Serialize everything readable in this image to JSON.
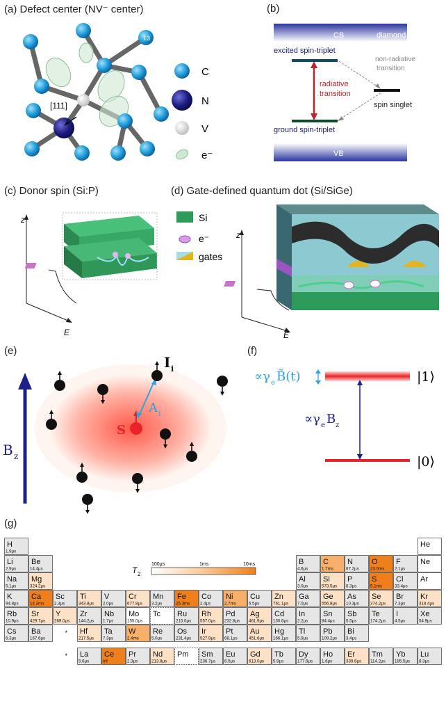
{
  "panels": {
    "a": {
      "label": "(a) Defect center (NV⁻ center)",
      "direction": "[111]",
      "atom_index": "13",
      "legend": [
        {
          "symbol": "C"
        },
        {
          "symbol": "N"
        },
        {
          "symbol": "V"
        },
        {
          "symbol": "e⁻"
        }
      ]
    },
    "b": {
      "label": "(b)",
      "cb": "CB",
      "diamond": "diamond",
      "vb": "VB",
      "excited": "excited spin-triplet",
      "ground": "ground spin-triplet",
      "radiative": "radiative",
      "radiative2": "transition",
      "nonrad": "non-radiative",
      "nonrad2": "transition",
      "singlet": "spin singlet"
    },
    "c": {
      "label": "(c)  Donor spin (Si:P)",
      "z": "z",
      "e": "E"
    },
    "d": {
      "label": "(d)  Gate-defined quantum dot (Si/SiGe)",
      "z": "z",
      "e": "E",
      "legend": [
        {
          "name": "Si"
        },
        {
          "name": "e⁻"
        },
        {
          "name": "gates"
        }
      ]
    },
    "e": {
      "label": "(e)",
      "bz": "B",
      "bz_sub": "z",
      "s": "S",
      "ai": "A",
      "ai_sub": "i",
      "ii": "I",
      "ii_sub": "i"
    },
    "f": {
      "label": "(f)",
      "ket1": "|1⟩",
      "ket0": "|0⟩",
      "top_expr": "∝γ",
      "top_sub": "e",
      "top_b": "B̃(t)",
      "mid_expr": "∝γ",
      "mid_sub": "e",
      "mid_b": "B",
      "mid_bsub": "z"
    },
    "g": {
      "label": "(g)",
      "scale_symbol": "T",
      "scale_sub": "2",
      "scale_ticks": [
        "100μs",
        "1ms",
        "10ms"
      ]
    }
  },
  "colors": {
    "accent_orange": "#ef7f1a",
    "blue_band": "#3c46a8",
    "red_level": "#e8242a",
    "cyan": "#2ea3e0",
    "si_green": "#2e9a5a",
    "dark_blue": "#1f1f8a"
  },
  "periodic_table": [
    {
      "s": "H",
      "v": "1.9μs",
      "r": 0,
      "c": 0,
      "t": "g"
    },
    {
      "s": "He",
      "v": "",
      "r": 0,
      "c": 17,
      "t": "w"
    },
    {
      "s": "Li",
      "v": "2.9μs",
      "r": 1,
      "c": 0,
      "t": "g"
    },
    {
      "s": "Be",
      "v": "14.4μs",
      "r": 1,
      "c": 1,
      "t": "g"
    },
    {
      "s": "B",
      "v": "4.6μs",
      "r": 1,
      "c": 12,
      "t": "g"
    },
    {
      "s": "C",
      "v": "1.7ms",
      "r": 1,
      "c": 13,
      "t": "m"
    },
    {
      "s": "N",
      "v": "67.2μs",
      "r": 1,
      "c": 14,
      "t": "g"
    },
    {
      "s": "O",
      "v": "23.0ms",
      "r": 1,
      "c": 15,
      "t": "s"
    },
    {
      "s": "F",
      "v": "2.1μs",
      "r": 1,
      "c": 16,
      "t": "g"
    },
    {
      "s": "Ne",
      "v": "",
      "r": 1,
      "c": 17,
      "t": "w"
    },
    {
      "s": "Na",
      "v": "5.1μs",
      "r": 2,
      "c": 0,
      "t": "g"
    },
    {
      "s": "Mg",
      "v": "324.2μs",
      "r": 2,
      "c": 1,
      "t": "l"
    },
    {
      "s": "Al",
      "v": "3.0μs",
      "r": 2,
      "c": 12,
      "t": "g"
    },
    {
      "s": "Si",
      "v": "573.5μs",
      "r": 2,
      "c": 13,
      "t": "l"
    },
    {
      "s": "P",
      "v": "8.3μs",
      "r": 2,
      "c": 14,
      "t": "g"
    },
    {
      "s": "S",
      "v": "5.1ms",
      "r": 2,
      "c": 15,
      "t": "s"
    },
    {
      "s": "Cl",
      "v": "33.4μs",
      "r": 2,
      "c": 16,
      "t": "g"
    },
    {
      "s": "Ar",
      "v": "",
      "r": 2,
      "c": 17,
      "t": "w"
    },
    {
      "s": "K",
      "v": "94.8μs",
      "r": 3,
      "c": 0,
      "t": "g"
    },
    {
      "s": "Ca",
      "v": "14.2ms",
      "r": 3,
      "c": 1,
      "t": "s"
    },
    {
      "s": "Sc",
      "v": "2.3μs",
      "r": 3,
      "c": 2,
      "t": "g"
    },
    {
      "s": "Ti",
      "v": "343.8μs",
      "r": 3,
      "c": 3,
      "t": "l"
    },
    {
      "s": "V",
      "v": "2.0μs",
      "r": 3,
      "c": 4,
      "t": "g"
    },
    {
      "s": "Cr",
      "v": "677.8μs",
      "r": 3,
      "c": 5,
      "t": "l"
    },
    {
      "s": "Mn",
      "v": "3.2μs",
      "r": 3,
      "c": 6,
      "t": "g"
    },
    {
      "s": "Fe",
      "v": "25.3ms",
      "r": 3,
      "c": 7,
      "t": "s"
    },
    {
      "s": "Co",
      "v": "2.4μs",
      "r": 3,
      "c": 8,
      "t": "g"
    },
    {
      "s": "Ni",
      "v": "2.7ms",
      "r": 3,
      "c": 9,
      "t": "m"
    },
    {
      "s": "Cu",
      "v": "6.5μs",
      "r": 3,
      "c": 10,
      "t": "g"
    },
    {
      "s": "Zn",
      "v": "761.1μs",
      "r": 3,
      "c": 11,
      "t": "l"
    },
    {
      "s": "Ga",
      "v": "7.0μs",
      "r": 3,
      "c": 12,
      "t": "g"
    },
    {
      "s": "Ge",
      "v": "556.8μs",
      "r": 3,
      "c": 13,
      "t": "l"
    },
    {
      "s": "As",
      "v": "10.3μs",
      "r": 3,
      "c": 14,
      "t": "g"
    },
    {
      "s": "Se",
      "v": "374.2μs",
      "r": 3,
      "c": 15,
      "t": "l"
    },
    {
      "s": "Br",
      "v": "7.3μs",
      "r": 3,
      "c": 16,
      "t": "g"
    },
    {
      "s": "Kr",
      "v": "318.4μs",
      "r": 3,
      "c": 17,
      "t": "l"
    },
    {
      "s": "Rb",
      "v": "10.9μs",
      "r": 4,
      "c": 0,
      "t": "g"
    },
    {
      "s": "Sr",
      "v": "429.7μs",
      "r": 4,
      "c": 1,
      "t": "l"
    },
    {
      "s": "Y",
      "v": "269.0μs",
      "r": 4,
      "c": 2,
      "t": "l"
    },
    {
      "s": "Zr",
      "v": "144.2μs",
      "r": 4,
      "c": 3,
      "t": "g"
    },
    {
      "s": "Nb",
      "v": "1.7μs",
      "r": 4,
      "c": 4,
      "t": "g"
    },
    {
      "s": "Mo",
      "v": "155.0μs",
      "r": 4,
      "c": 5,
      "t": "w"
    },
    {
      "s": "Tc",
      "v": "",
      "r": 4,
      "c": 6,
      "t": "d"
    },
    {
      "s": "Ru",
      "v": "215.0μs",
      "r": 4,
      "c": 7,
      "t": "g"
    },
    {
      "s": "Rh",
      "v": "557.0μs",
      "r": 4,
      "c": 8,
      "t": "l"
    },
    {
      "s": "Pd",
      "v": "232.8μs",
      "r": 4,
      "c": 9,
      "t": "g"
    },
    {
      "s": "Ag",
      "v": "461.9μs",
      "r": 4,
      "c": 10,
      "t": "l"
    },
    {
      "s": "Cd",
      "v": "130.6μs",
      "r": 4,
      "c": 11,
      "t": "g"
    },
    {
      "s": "In",
      "v": "2.2μs",
      "r": 4,
      "c": 12,
      "t": "g"
    },
    {
      "s": "Sn",
      "v": "84.4μs",
      "r": 4,
      "c": 13,
      "t": "g"
    },
    {
      "s": "Sb",
      "v": "5.5μs",
      "r": 4,
      "c": 14,
      "t": "g"
    },
    {
      "s": "Te",
      "v": "174.2μs",
      "r": 4,
      "c": 15,
      "t": "g"
    },
    {
      "s": "I",
      "v": "4.5μs",
      "r": 4,
      "c": 16,
      "t": "g"
    },
    {
      "s": "Xe",
      "v": "54.9μs",
      "r": 4,
      "c": 17,
      "t": "g"
    },
    {
      "s": "Cs",
      "v": "6.3μs",
      "r": 5,
      "c": 0,
      "t": "g"
    },
    {
      "s": "Ba",
      "v": "167.6μs",
      "r": 5,
      "c": 1,
      "t": "g"
    },
    {
      "s": "*",
      "v": "",
      "r": 5,
      "c": 2,
      "t": "x"
    },
    {
      "s": "Hf",
      "v": "217.5μs",
      "r": 5,
      "c": 3,
      "t": "l"
    },
    {
      "s": "Ta",
      "v": "7.3μs",
      "r": 5,
      "c": 4,
      "t": "g"
    },
    {
      "s": "W",
      "v": "2.4ms",
      "r": 5,
      "c": 5,
      "t": "m"
    },
    {
      "s": "Re",
      "v": "5.0μs",
      "r": 5,
      "c": 6,
      "t": "g"
    },
    {
      "s": "Os",
      "v": "231.4μs",
      "r": 5,
      "c": 7,
      "t": "g"
    },
    {
      "s": "Ir",
      "v": "527.9μs",
      "r": 5,
      "c": 8,
      "t": "l"
    },
    {
      "s": "Pt",
      "v": "68.1μs",
      "r": 5,
      "c": 9,
      "t": "g"
    },
    {
      "s": "Au",
      "v": "451.6μs",
      "r": 5,
      "c": 10,
      "t": "l"
    },
    {
      "s": "Hg",
      "v": "166.1μs",
      "r": 5,
      "c": 11,
      "t": "g"
    },
    {
      "s": "Tl",
      "v": "5.9μs",
      "r": 5,
      "c": 12,
      "t": "g"
    },
    {
      "s": "Pb",
      "v": "109.2μs",
      "r": 5,
      "c": 13,
      "t": "g"
    },
    {
      "s": "Bi",
      "v": "3.4μs",
      "r": 5,
      "c": 14,
      "t": "g"
    },
    {
      "s": "*",
      "v": "",
      "r": 6,
      "c": 2,
      "t": "x"
    },
    {
      "s": "La",
      "v": "5.6μs",
      "r": 6,
      "c": 3,
      "t": "g"
    },
    {
      "s": "Ce",
      "v": "Inf",
      "r": 6,
      "c": 4,
      "t": "s"
    },
    {
      "s": "Pr",
      "v": "2.3μs",
      "r": 6,
      "c": 5,
      "t": "g"
    },
    {
      "s": "Nd",
      "v": "213.8μs",
      "r": 6,
      "c": 6,
      "t": "l"
    },
    {
      "s": "Pm",
      "v": "",
      "r": 6,
      "c": 7,
      "t": "d"
    },
    {
      "s": "Sm",
      "v": "236.7μs",
      "r": 6,
      "c": 8,
      "t": "g"
    },
    {
      "s": "Eu",
      "v": "6.5μs",
      "r": 6,
      "c": 9,
      "t": "g"
    },
    {
      "s": "Gd",
      "v": "613.0μs",
      "r": 6,
      "c": 10,
      "t": "l"
    },
    {
      "s": "Tb",
      "v": "5.9μs",
      "r": 6,
      "c": 11,
      "t": "g"
    },
    {
      "s": "Dy",
      "v": "177.6μs",
      "r": 6,
      "c": 12,
      "t": "g"
    },
    {
      "s": "Ho",
      "v": "1.6μs",
      "r": 6,
      "c": 13,
      "t": "g"
    },
    {
      "s": "Er",
      "v": "339.6μs",
      "r": 6,
      "c": 14,
      "t": "l"
    },
    {
      "s": "Tm",
      "v": "114.2μs",
      "r": 6,
      "c": 15,
      "t": "g"
    },
    {
      "s": "Yb",
      "v": "185.5μs",
      "r": 6,
      "c": 16,
      "t": "g"
    },
    {
      "s": "Lu",
      "v": "8.3μs",
      "r": 6,
      "c": 17,
      "t": "g"
    }
  ]
}
